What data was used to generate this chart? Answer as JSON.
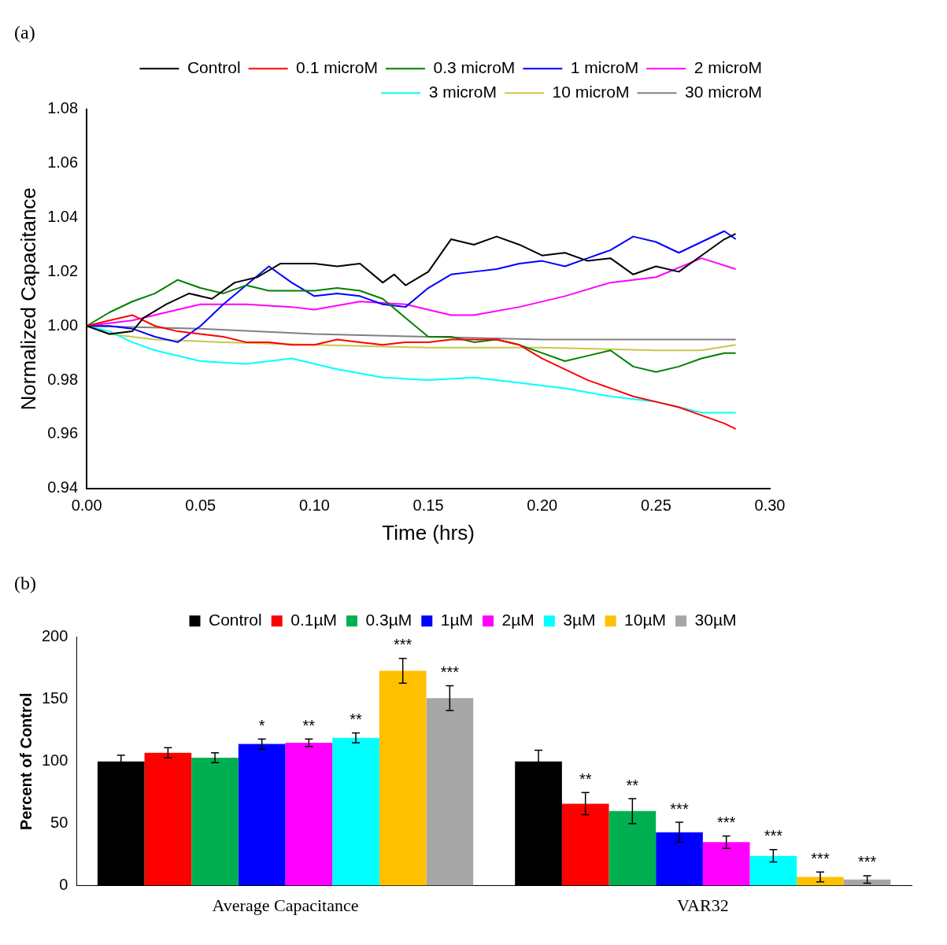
{
  "chart_data": [
    {
      "type": "line",
      "title": "(a)",
      "xlabel": "Time (hrs)",
      "ylabel": "Normalized Capacitance",
      "xlim": [
        0,
        0.3
      ],
      "xticks": [
        {
          "value": 0,
          "label": "0.00"
        },
        {
          "value": 0.05,
          "label": "0.05"
        },
        {
          "value": 0.1,
          "label": "0.10"
        },
        {
          "value": 0.15,
          "label": "0.15"
        },
        {
          "value": 0.2,
          "label": "0.20"
        },
        {
          "value": 0.25,
          "label": "0.25"
        },
        {
          "value": 0.3,
          "label": "0.30"
        }
      ],
      "ylim": [
        0.94,
        1.08
      ],
      "yticks": [
        {
          "value": 0.94,
          "label": "0.94"
        },
        {
          "value": 0.96,
          "label": "0.96"
        },
        {
          "value": 0.98,
          "label": "0.98"
        },
        {
          "value": 1.0,
          "label": "1.00"
        },
        {
          "value": 1.02,
          "label": "1.02"
        },
        {
          "value": 1.04,
          "label": "1.04"
        },
        {
          "value": 1.06,
          "label": "1.06"
        },
        {
          "value": 1.08,
          "label": "1.08"
        }
      ],
      "grid": false,
      "legend": "top right",
      "series": [
        {
          "name": "Control",
          "color": "#000000",
          "x": [
            0,
            0.01,
            0.02,
            0.025,
            0.035,
            0.045,
            0.055,
            0.065,
            0.075,
            0.085,
            0.1,
            0.11,
            0.12,
            0.13,
            0.135,
            0.14,
            0.15,
            0.16,
            0.17,
            0.18,
            0.19,
            0.2,
            0.21,
            0.22,
            0.23,
            0.24,
            0.25,
            0.26,
            0.27,
            0.28,
            0.285
          ],
          "values": [
            1.0,
            0.997,
            0.998,
            1.003,
            1.008,
            1.012,
            1.01,
            1.016,
            1.018,
            1.023,
            1.023,
            1.022,
            1.023,
            1.016,
            1.019,
            1.015,
            1.02,
            1.032,
            1.03,
            1.033,
            1.03,
            1.026,
            1.027,
            1.024,
            1.025,
            1.019,
            1.022,
            1.02,
            1.026,
            1.032,
            1.034
          ]
        },
        {
          "name": "0.1 microM",
          "color": "#ff0000",
          "x": [
            0,
            0.01,
            0.02,
            0.025,
            0.03,
            0.04,
            0.05,
            0.06,
            0.07,
            0.08,
            0.09,
            0.1,
            0.11,
            0.12,
            0.13,
            0.14,
            0.15,
            0.16,
            0.17,
            0.18,
            0.19,
            0.2,
            0.21,
            0.22,
            0.23,
            0.24,
            0.25,
            0.26,
            0.27,
            0.28,
            0.285
          ],
          "values": [
            1.0,
            1.002,
            1.004,
            1.002,
            1.0,
            0.998,
            0.997,
            0.996,
            0.994,
            0.994,
            0.993,
            0.993,
            0.995,
            0.994,
            0.993,
            0.994,
            0.994,
            0.995,
            0.995,
            0.995,
            0.993,
            0.988,
            0.984,
            0.98,
            0.977,
            0.974,
            0.972,
            0.97,
            0.967,
            0.964,
            0.962
          ]
        },
        {
          "name": "0.3 microM",
          "color": "#008000",
          "x": [
            0,
            0.01,
            0.02,
            0.03,
            0.04,
            0.05,
            0.06,
            0.07,
            0.08,
            0.09,
            0.1,
            0.11,
            0.12,
            0.13,
            0.14,
            0.15,
            0.16,
            0.17,
            0.18,
            0.19,
            0.2,
            0.21,
            0.22,
            0.23,
            0.24,
            0.25,
            0.26,
            0.27,
            0.28,
            0.285
          ],
          "values": [
            1.0,
            1.005,
            1.009,
            1.012,
            1.017,
            1.014,
            1.012,
            1.015,
            1.013,
            1.013,
            1.013,
            1.014,
            1.013,
            1.01,
            1.003,
            0.996,
            0.996,
            0.994,
            0.995,
            0.993,
            0.99,
            0.987,
            0.989,
            0.991,
            0.985,
            0.983,
            0.985,
            0.988,
            0.99,
            0.99
          ]
        },
        {
          "name": "1 microM",
          "color": "#0000ff",
          "x": [
            0,
            0.01,
            0.02,
            0.03,
            0.04,
            0.05,
            0.06,
            0.07,
            0.08,
            0.09,
            0.1,
            0.11,
            0.12,
            0.13,
            0.14,
            0.15,
            0.16,
            0.17,
            0.18,
            0.19,
            0.2,
            0.21,
            0.22,
            0.23,
            0.24,
            0.25,
            0.26,
            0.27,
            0.28,
            0.285
          ],
          "values": [
            1.0,
            1.0,
            0.999,
            0.996,
            0.994,
            1.0,
            1.008,
            1.015,
            1.022,
            1.016,
            1.011,
            1.012,
            1.011,
            1.008,
            1.007,
            1.014,
            1.019,
            1.02,
            1.021,
            1.023,
            1.024,
            1.022,
            1.025,
            1.028,
            1.033,
            1.031,
            1.027,
            1.031,
            1.035,
            1.032
          ]
        },
        {
          "name": "2 microM",
          "color": "#ff00ff",
          "x": [
            0,
            0.02,
            0.04,
            0.05,
            0.07,
            0.09,
            0.1,
            0.12,
            0.14,
            0.16,
            0.17,
            0.19,
            0.21,
            0.23,
            0.25,
            0.27,
            0.285
          ],
          "values": [
            1.0,
            1.002,
            1.006,
            1.008,
            1.008,
            1.007,
            1.006,
            1.009,
            1.008,
            1.004,
            1.004,
            1.007,
            1.011,
            1.016,
            1.018,
            1.025,
            1.021
          ]
        },
        {
          "name": "3 microM",
          "color": "#00ffff",
          "x": [
            0,
            0.01,
            0.02,
            0.03,
            0.05,
            0.07,
            0.09,
            0.11,
            0.13,
            0.15,
            0.17,
            0.19,
            0.21,
            0.23,
            0.25,
            0.26,
            0.27,
            0.285
          ],
          "values": [
            1.0,
            0.998,
            0.994,
            0.991,
            0.987,
            0.986,
            0.988,
            0.984,
            0.981,
            0.98,
            0.981,
            0.979,
            0.977,
            0.974,
            0.972,
            0.97,
            0.968,
            0.968
          ]
        },
        {
          "name": "10 microM",
          "color": "#c8c846",
          "x": [
            0,
            0.01,
            0.03,
            0.06,
            0.1,
            0.15,
            0.2,
            0.25,
            0.27,
            0.285
          ],
          "values": [
            1.0,
            0.997,
            0.995,
            0.994,
            0.993,
            0.992,
            0.992,
            0.991,
            0.991,
            0.993
          ]
        },
        {
          "name": "30 microM",
          "color": "#808080",
          "x": [
            0,
            0.05,
            0.1,
            0.15,
            0.2,
            0.25,
            0.285
          ],
          "values": [
            1.0,
            0.999,
            0.997,
            0.996,
            0.995,
            0.995,
            0.995
          ]
        }
      ]
    },
    {
      "type": "bar",
      "title": "(b)",
      "ylabel": "Percent of Control",
      "categories": [
        "Average Capacitance",
        "VAR32"
      ],
      "ylim": [
        0,
        200
      ],
      "yticks": [
        0,
        50,
        100,
        150,
        200
      ],
      "grid": false,
      "legend": "top",
      "series": [
        {
          "name": "Control",
          "color": "#000000",
          "values": [
            100,
            100
          ],
          "errors": [
            5,
            9
          ]
        },
        {
          "name": "0.1µM",
          "color": "#ff0000",
          "values": [
            107,
            66
          ],
          "errors": [
            4,
            9
          ],
          "value_labels": [
            null,
            "**"
          ]
        },
        {
          "name": "0.3µM",
          "color": "#00b050",
          "values": [
            103,
            60
          ],
          "errors": [
            4,
            10
          ],
          "value_labels": [
            null,
            "**"
          ]
        },
        {
          "name": "1µM",
          "color": "#0000ff",
          "values": [
            114,
            43
          ],
          "errors": [
            4,
            8
          ],
          "value_labels": [
            "*",
            "***"
          ]
        },
        {
          "name": "2µM",
          "color": "#ff00ff",
          "values": [
            115,
            35
          ],
          "errors": [
            3,
            5
          ],
          "value_labels": [
            "**",
            "***"
          ]
        },
        {
          "name": "3µM",
          "color": "#00ffff",
          "values": [
            119,
            24
          ],
          "errors": [
            4,
            5
          ],
          "value_labels": [
            "**",
            "***"
          ]
        },
        {
          "name": "10µM",
          "color": "#ffc000",
          "values": [
            173,
            7
          ],
          "errors": [
            10,
            4
          ],
          "value_labels": [
            "***",
            "***"
          ]
        },
        {
          "name": "30µM",
          "color": "#a6a6a6",
          "values": [
            151,
            5
          ],
          "errors": [
            10,
            3
          ],
          "value_labels": [
            "***",
            "***"
          ]
        }
      ]
    }
  ]
}
